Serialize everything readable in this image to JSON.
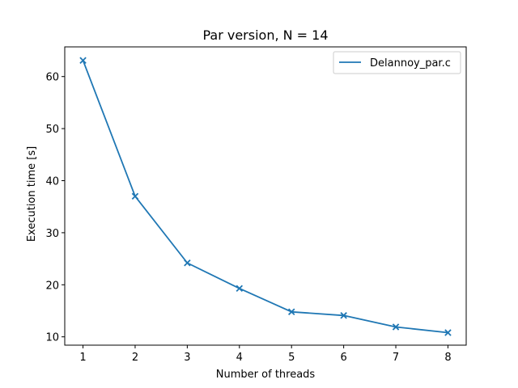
{
  "chart_data": {
    "type": "line",
    "title": "Par version, N = 14",
    "xlabel": "Number of threads",
    "ylabel": "Execution time [s]",
    "x": [
      1,
      2,
      3,
      4,
      5,
      6,
      7,
      8
    ],
    "series": [
      {
        "name": "Delannoy_par.c",
        "values": [
          63.1,
          37.0,
          24.2,
          19.3,
          14.8,
          14.1,
          11.9,
          10.8
        ],
        "color": "#1f77b4",
        "marker": "x"
      }
    ],
    "xlim": [
      0.65,
      8.35
    ],
    "ylim": [
      8.4,
      65.7
    ],
    "xticks": [
      1,
      2,
      3,
      4,
      5,
      6,
      7,
      8
    ],
    "yticks": [
      10,
      20,
      30,
      40,
      50,
      60
    ],
    "grid": false,
    "legend_position": "top-right"
  }
}
